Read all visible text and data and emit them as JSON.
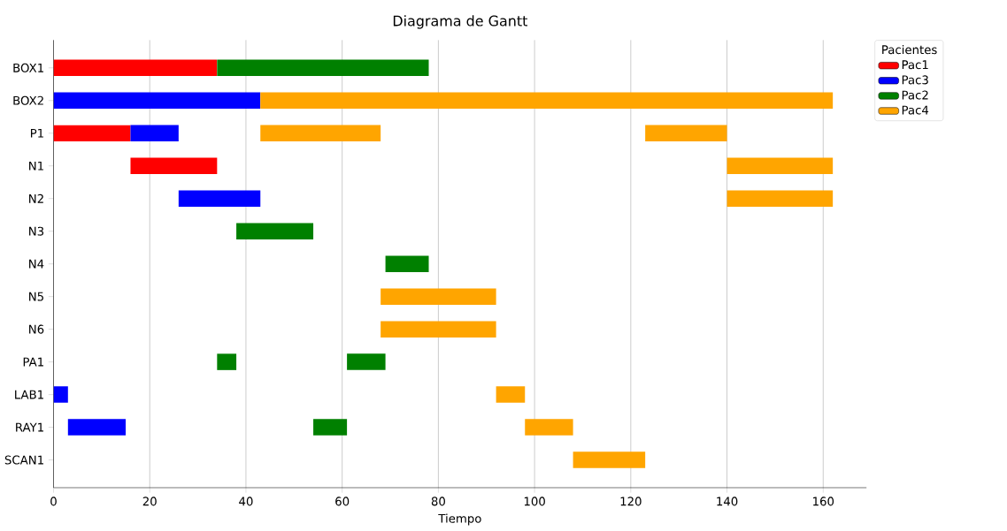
{
  "chart_data": {
    "type": "bar",
    "orientation": "horizontal",
    "title": "Diagrama de Gantt",
    "xlabel": "Tiempo",
    "categories": [
      "BOX1",
      "BOX2",
      "P1",
      "N1",
      "N2",
      "N3",
      "N4",
      "N5",
      "N6",
      "PA1",
      "LAB1",
      "RAY1",
      "SCAN1"
    ],
    "series": [
      {
        "name": "Pac1",
        "color": "#ff0000",
        "base": [
          0,
          null,
          0,
          16,
          null,
          null,
          null,
          null,
          null,
          null,
          null,
          null,
          null
        ],
        "values": [
          34,
          null,
          16,
          18,
          null,
          null,
          null,
          null,
          null,
          null,
          null,
          null,
          null
        ]
      },
      {
        "name": "Pac3",
        "color": "#0000ff",
        "base": [
          null,
          0,
          16,
          null,
          26,
          null,
          null,
          null,
          null,
          null,
          0,
          3,
          null
        ],
        "values": [
          null,
          43,
          10,
          null,
          17,
          null,
          null,
          null,
          null,
          null,
          3,
          12,
          null
        ]
      },
      {
        "name": "Pac2",
        "color": "#008000",
        "base": [
          34,
          null,
          null,
          null,
          null,
          38,
          69,
          null,
          null,
          34,
          null,
          54,
          null
        ],
        "values": [
          44,
          null,
          null,
          null,
          null,
          16,
          9,
          null,
          null,
          4,
          null,
          7,
          null
        ]
      },
      {
        "name": "Pac4",
        "color": "#ffa500",
        "base": [
          null,
          43,
          43,
          140,
          140,
          null,
          null,
          68,
          68,
          null,
          92,
          98,
          108
        ],
        "values": [
          null,
          119,
          25,
          22,
          22,
          null,
          null,
          24,
          24,
          null,
          6,
          10,
          15
        ]
      },
      {
        "color": "#008000",
        "base": [
          null,
          null,
          null,
          null,
          null,
          null,
          null,
          null,
          null,
          61,
          null,
          null,
          null
        ],
        "values": [
          null,
          null,
          null,
          null,
          null,
          null,
          null,
          null,
          null,
          8,
          null,
          null,
          null
        ]
      },
      {
        "color": "#ffa500",
        "base": [
          null,
          null,
          123,
          null,
          null,
          null,
          null,
          null,
          null,
          null,
          null,
          null,
          null
        ],
        "values": [
          null,
          null,
          17,
          null,
          null,
          null,
          null,
          null,
          null,
          null,
          null,
          null,
          null
        ]
      }
    ],
    "xlim": [
      0,
      169
    ],
    "xticks": [
      0,
      20,
      40,
      60,
      80,
      100,
      120,
      140,
      160
    ],
    "grid": "x",
    "legend": "top right",
    "legend_title": "Pacientes"
  }
}
